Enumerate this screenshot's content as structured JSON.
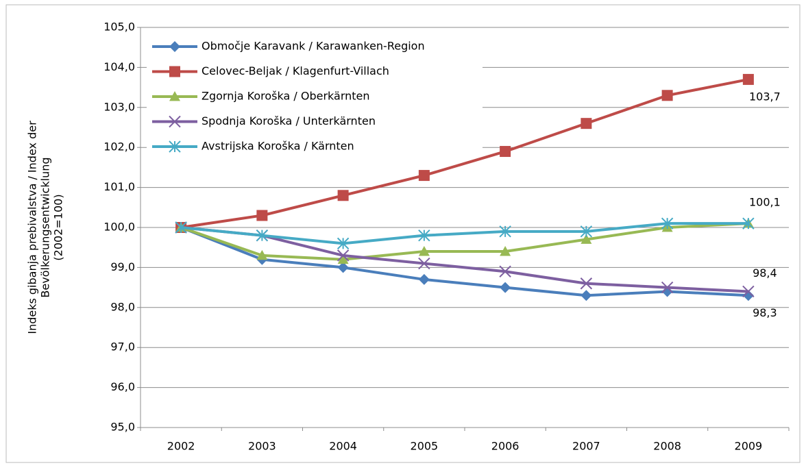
{
  "chart_data": {
    "type": "line",
    "y_label": [
      "Indeks gibanja prebivalstva / Index der",
      "Bevölkerungsentwicklung",
      "(2002=100)"
    ],
    "categories": [
      "2002",
      "2003",
      "2004",
      "2005",
      "2006",
      "2007",
      "2008",
      "2009"
    ],
    "ylim": [
      95,
      105
    ],
    "yticks": [
      {
        "value": 95,
        "label": "95,0"
      },
      {
        "value": 96,
        "label": "96,0"
      },
      {
        "value": 97,
        "label": "97,0"
      },
      {
        "value": 98,
        "label": "98,0"
      },
      {
        "value": 99,
        "label": "99,0"
      },
      {
        "value": 100,
        "label": "100,0"
      },
      {
        "value": 101,
        "label": "101,0"
      },
      {
        "value": 102,
        "label": "102,0"
      },
      {
        "value": 103,
        "label": "103,0"
      },
      {
        "value": 104,
        "label": "104,0"
      },
      {
        "value": 105,
        "label": "105,0"
      }
    ],
    "grid": true,
    "legend": "upper left",
    "series": [
      {
        "name": "Območje Karavank / Karawanken-Region",
        "color": "#4a7ebb",
        "marker": "diamond",
        "values": [
          100,
          99.2,
          99.0,
          98.7,
          98.5,
          98.3,
          98.4,
          98.3
        ],
        "value_labels": [
          null,
          null,
          null,
          null,
          null,
          null,
          null,
          "98,3"
        ]
      },
      {
        "name": "Celovec-Beljak / Klagenfurt-Villach",
        "color": "#be4b48",
        "marker": "square",
        "values": [
          100,
          100.3,
          100.8,
          101.3,
          101.9,
          102.6,
          103.3,
          103.7
        ],
        "value_labels": [
          null,
          null,
          null,
          null,
          null,
          null,
          null,
          "103,7"
        ]
      },
      {
        "name": "Zgornja Koroška / Oberkärnten",
        "color": "#98b954",
        "marker": "triangle",
        "values": [
          100,
          99.3,
          99.2,
          99.4,
          99.4,
          99.7,
          100.0,
          100.1
        ]
      },
      {
        "name": "Spodnja Koroška / Unterkärnten",
        "color": "#7d5fa0",
        "marker": "x",
        "values": [
          100,
          99.8,
          99.3,
          99.1,
          98.9,
          98.6,
          98.5,
          98.4
        ],
        "value_labels": [
          null,
          null,
          null,
          null,
          null,
          null,
          null,
          "98,4"
        ]
      },
      {
        "name": "Avstrijska Koroška / Kärnten",
        "color": "#46aac5",
        "marker": "star",
        "values": [
          100,
          99.8,
          99.6,
          99.8,
          99.9,
          99.9,
          100.1,
          100.1
        ],
        "value_labels": [
          null,
          null,
          null,
          null,
          null,
          null,
          null,
          "100,1"
        ]
      }
    ]
  }
}
